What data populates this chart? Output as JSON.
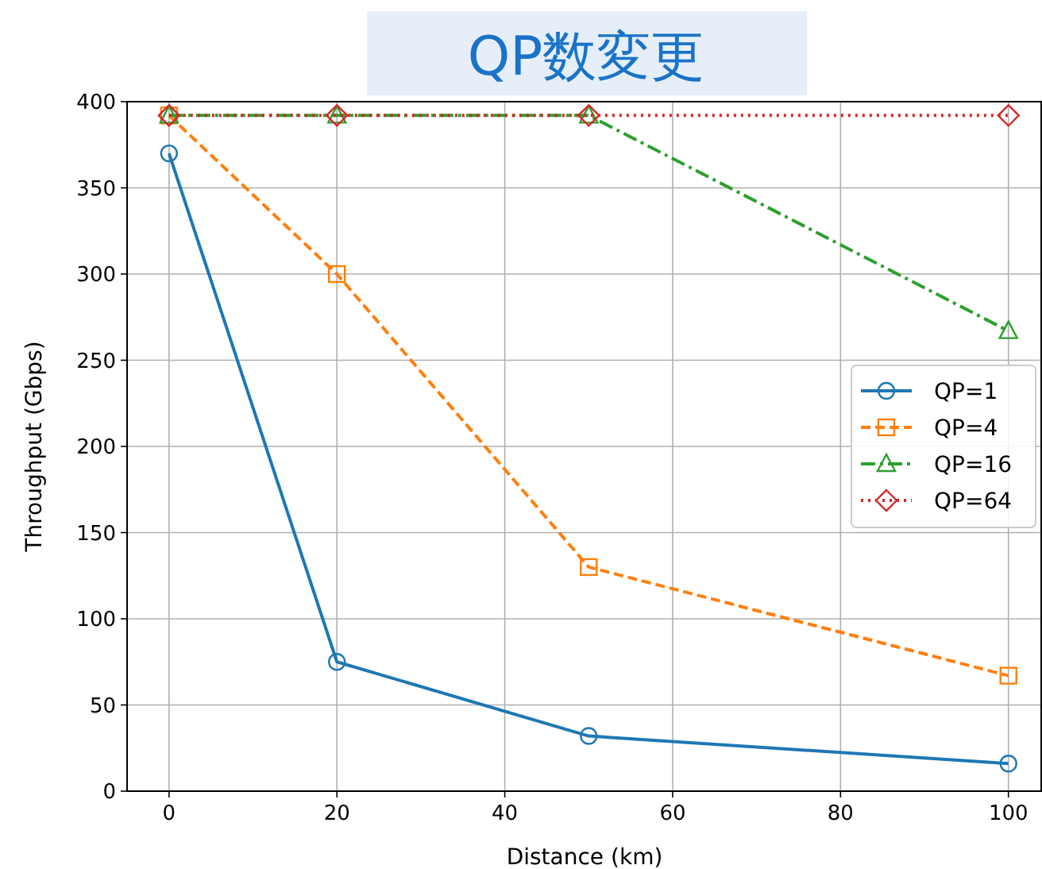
{
  "chart_data": {
    "type": "line",
    "title": "QP数変更",
    "xlabel": "Distance (km)",
    "ylabel": "Throughput (Gbps)",
    "x": [
      0,
      20,
      50,
      100
    ],
    "series": [
      {
        "name": "QP=1",
        "color": "#1f77b4",
        "values": [
          370,
          75,
          32,
          16
        ],
        "marker": "circle",
        "line_style": "solid"
      },
      {
        "name": "QP=4",
        "color": "#ff7f0e",
        "values": [
          392,
          300,
          130,
          67
        ],
        "marker": "square",
        "line_style": "dashed"
      },
      {
        "name": "QP=16",
        "color": "#2ca02c",
        "values": [
          392,
          392,
          392,
          267
        ],
        "marker": "triangle",
        "line_style": "dashdot"
      },
      {
        "name": "QP=64",
        "color": "#d62728",
        "values": [
          392,
          392,
          392,
          392
        ],
        "marker": "diamond",
        "line_style": "dotted"
      }
    ],
    "xlim": [
      -5,
      104
    ],
    "ylim": [
      0,
      400
    ],
    "xticks": [
      0,
      20,
      40,
      60,
      80,
      100
    ],
    "yticks": [
      0,
      50,
      100,
      150,
      200,
      250,
      300,
      350,
      400
    ],
    "grid": true,
    "legend": "right"
  }
}
